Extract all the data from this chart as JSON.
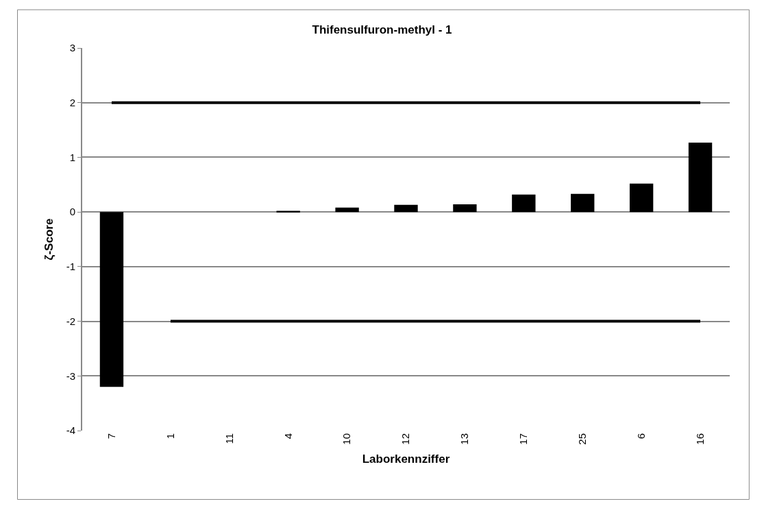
{
  "chart_data": {
    "type": "bar",
    "title": "Thifensulfuron-methyl - 1",
    "xlabel": "Laborkennziffer",
    "ylabel": "ζ-Score",
    "categories": [
      "7",
      "1",
      "11",
      "4",
      "10",
      "12",
      "13",
      "17",
      "25",
      "6",
      "16"
    ],
    "series": [
      {
        "color": "#000000",
        "values": [
          -3.2,
          0,
          0,
          0.02,
          0.08,
          0.13,
          0.14,
          0.32,
          0.33,
          0.52,
          1.27
        ]
      },
      {
        "type": "line",
        "color": "#000000",
        "values": [
          2,
          2,
          2,
          2,
          2,
          2,
          2,
          2,
          2,
          2,
          2
        ]
      },
      {
        "type": "line",
        "color": "#000000",
        "values": [
          null,
          -2,
          -2,
          -2,
          -2,
          -2,
          -2,
          -2,
          -2,
          -2,
          -2
        ]
      }
    ],
    "ylim": [
      -4,
      3
    ],
    "yticks": [
      -4,
      -3,
      -2,
      -1,
      0,
      1,
      2,
      3
    ],
    "grid": "y"
  }
}
